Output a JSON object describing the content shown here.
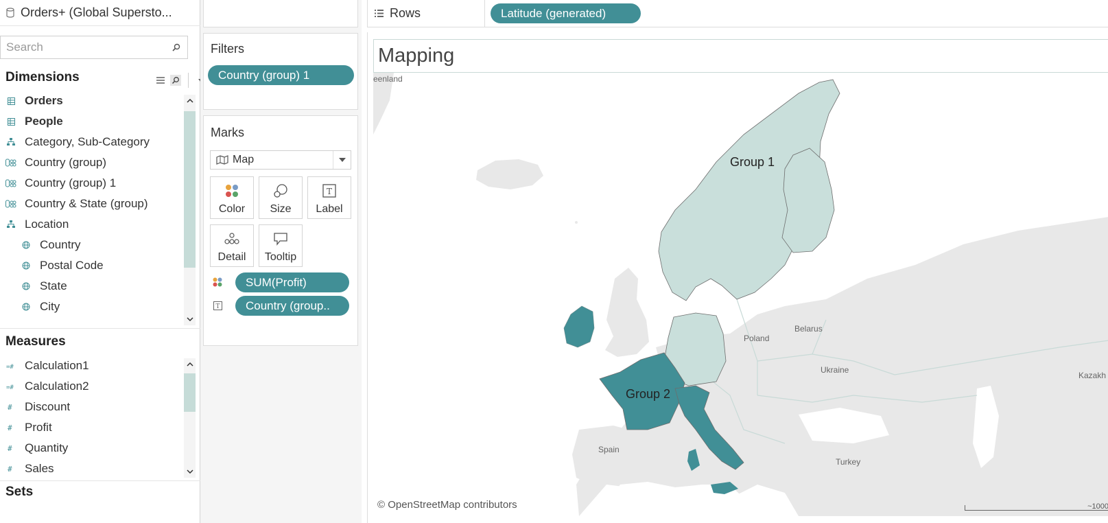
{
  "datasource": {
    "name": "Orders+ (Global Supersto..."
  },
  "search": {
    "placeholder": "Search"
  },
  "dimensions": {
    "heading": "Dimensions",
    "items": [
      {
        "label": "Orders",
        "icon": "table-icon"
      },
      {
        "label": "People",
        "icon": "table-icon"
      },
      {
        "label": "Category, Sub-Category",
        "icon": "hierarchy-icon"
      },
      {
        "label": "Country (group)",
        "icon": "group-icon"
      },
      {
        "label": "Country (group) 1",
        "icon": "group-icon"
      },
      {
        "label": "Country & State (group)",
        "icon": "group-icon"
      },
      {
        "label": "Location",
        "icon": "hierarchy-icon"
      },
      {
        "label": "Country",
        "icon": "globe-icon"
      },
      {
        "label": "Postal Code",
        "icon": "globe-icon"
      },
      {
        "label": "State",
        "icon": "globe-icon"
      },
      {
        "label": "City",
        "icon": "globe-icon"
      }
    ]
  },
  "measures": {
    "heading": "Measures",
    "items": [
      {
        "label": "Calculation1",
        "icon": "calc-measure-icon"
      },
      {
        "label": "Calculation2",
        "icon": "calc-measure-icon"
      },
      {
        "label": "Discount",
        "icon": "measure-icon"
      },
      {
        "label": "Profit",
        "icon": "measure-icon"
      },
      {
        "label": "Quantity",
        "icon": "measure-icon"
      },
      {
        "label": "Sales",
        "icon": "measure-icon"
      }
    ]
  },
  "sets": {
    "heading": "Sets"
  },
  "filters": {
    "title": "Filters",
    "pills": [
      "Country (group) 1"
    ]
  },
  "marks": {
    "title": "Marks",
    "mark_type": "Map",
    "buttons": [
      "Color",
      "Size",
      "Label",
      "Detail",
      "Tooltip"
    ],
    "encodings": [
      {
        "icon": "color-encoding-icon",
        "label": "SUM(Profit)"
      },
      {
        "icon": "label-encoding-icon",
        "label": "Country (group.."
      }
    ]
  },
  "rows": {
    "label": "Rows",
    "pill": "Latitude (generated)"
  },
  "view": {
    "title": "Mapping",
    "map_labels": [
      "eenland",
      "Poland",
      "Belarus",
      "Ukraine",
      "Spain",
      "Turkey",
      "Kazakh"
    ],
    "groups": [
      "Group 1",
      "Group 2"
    ],
    "attribution": "© OpenStreetMap contributors",
    "scale": "~1000"
  },
  "colors": {
    "accent": "#418f96",
    "group1_fill": "#c9dfdb",
    "group2_fill": "#418f96",
    "land": "#e8e8e8",
    "sea": "#ffffff"
  }
}
